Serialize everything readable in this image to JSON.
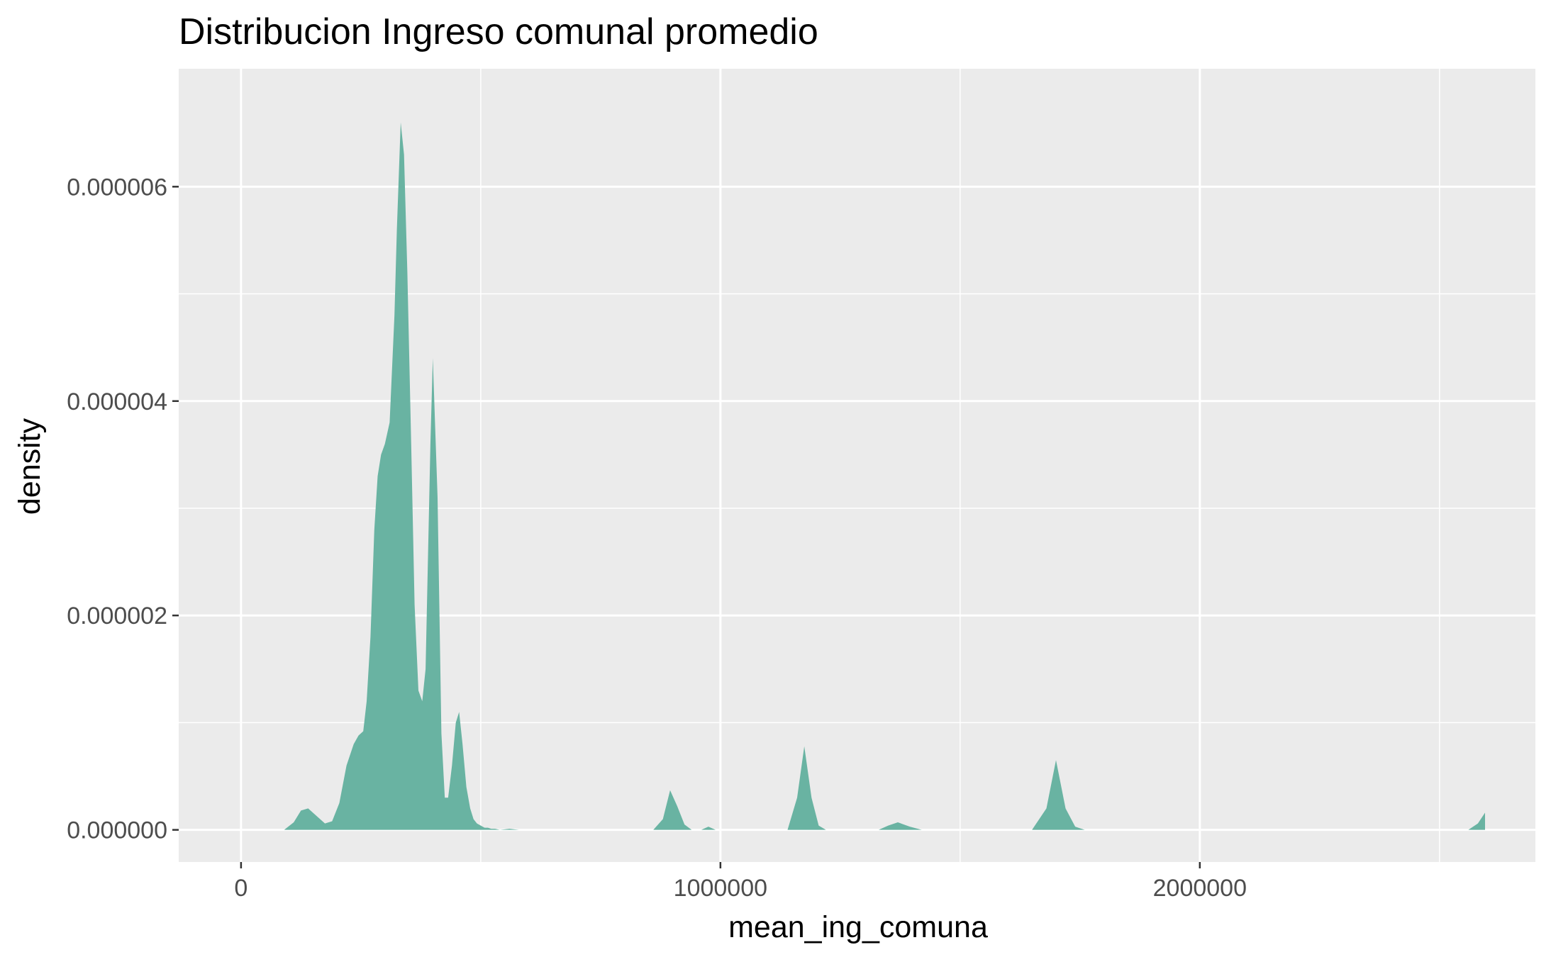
{
  "chart_data": {
    "type": "area",
    "title": "Distribucion Ingreso comunal promedio",
    "xlabel": "mean_ing_comuna",
    "ylabel": "density",
    "xlim": [
      -130000,
      2700000
    ],
    "ylim": [
      -3e-07,
      7.1e-06
    ],
    "x_ticks": [
      {
        "value": 0,
        "label": "0"
      },
      {
        "value": 1000000,
        "label": "1000000"
      },
      {
        "value": 2000000,
        "label": "2000000"
      }
    ],
    "y_ticks": [
      {
        "value": 0.0,
        "label": "0.000000"
      },
      {
        "value": 2e-06,
        "label": "0.000002"
      },
      {
        "value": 4e-06,
        "label": "0.000004"
      },
      {
        "value": 6e-06,
        "label": "0.000006"
      }
    ],
    "x_minor": [
      500000,
      1500000,
      2500000
    ],
    "y_minor": [
      1e-06,
      3e-06,
      5e-06
    ],
    "grid": true,
    "fill_color": "#69b3a2",
    "panel_color": "#ebebeb",
    "series": [
      {
        "x": [
          0,
          30000,
          90000,
          110000,
          125000,
          140000,
          160000,
          175000,
          190000,
          205000,
          220000,
          235000,
          245000,
          255000,
          262000,
          270000,
          278000,
          285000,
          292000,
          300000,
          310000,
          320000,
          325000,
          333000,
          340000,
          347000,
          355000,
          362000,
          370000,
          378000,
          385000,
          395000,
          400000,
          410000,
          418000,
          425000,
          432000,
          440000,
          448000,
          455000,
          462000,
          470000,
          478000,
          485000,
          492000,
          500000,
          508000,
          515000,
          522000,
          530000,
          540000,
          560000,
          580000,
          620000,
          680000,
          720000,
          860000,
          880000,
          895000,
          910000,
          925000,
          940000,
          960000,
          975000,
          990000,
          1010000,
          1030000,
          1140000,
          1160000,
          1175000,
          1190000,
          1205000,
          1220000,
          1240000,
          1330000,
          1350000,
          1370000,
          1395000,
          1420000,
          1440000,
          1650000,
          1680000,
          1700000,
          1720000,
          1740000,
          1760000,
          1780000,
          2560000,
          2580000,
          2595000
        ],
        "y": [
          0.0,
          0.0,
          0.0,
          7e-08,
          1.8e-07,
          2e-07,
          1.2e-07,
          6e-08,
          8e-08,
          2.5e-07,
          6e-07,
          8e-07,
          8.8e-07,
          9.2e-07,
          1.2e-06,
          1.8e-06,
          2.8e-06,
          3.3e-06,
          3.5e-06,
          3.6e-06,
          3.8e-06,
          4.8e-06,
          5.6e-06,
          6.6e-06,
          6.3e-06,
          5.2e-06,
          3.6e-06,
          2.1e-06,
          1.3e-06,
          1.2e-06,
          1.5e-06,
          3.6e-06,
          4.4e-06,
          3.1e-06,
          9e-07,
          3e-07,
          3e-07,
          6e-07,
          1e-06,
          1.1e-06,
          8e-07,
          4e-07,
          2e-07,
          1e-07,
          6e-08,
          4e-08,
          2e-08,
          2e-08,
          1e-08,
          1e-08,
          0.0,
          1e-08,
          0.0,
          0.0,
          0.0,
          0.0,
          0.0,
          1e-07,
          3.7e-07,
          2.2e-07,
          5e-08,
          0.0,
          0.0,
          3e-08,
          0.0,
          0.0,
          0.0,
          0.0,
          3e-07,
          7.8e-07,
          3e-07,
          4e-08,
          0.0,
          0.0,
          0.0,
          4e-08,
          7e-08,
          3e-08,
          0.0,
          0.0,
          0.0,
          2e-07,
          6.5e-07,
          2e-07,
          3e-08,
          0.0,
          0.0,
          0.0,
          6e-08,
          1.6e-07
        ]
      }
    ]
  }
}
